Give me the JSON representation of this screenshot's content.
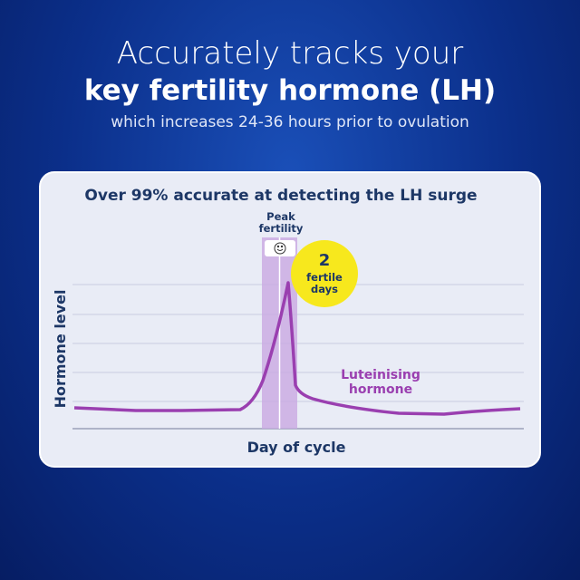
{
  "header": {
    "line1": "Accurately tracks your",
    "line2": "key fertility hormone (LH)",
    "line3": "which increases 24-36 hours prior to ovulation"
  },
  "card": {
    "title": "Over 99% accurate at detecting the LH surge",
    "y_label": "Hormone level",
    "x_label": "Day of cycle",
    "peak_label": [
      "Peak",
      "fertility"
    ],
    "badge": {
      "number": "2",
      "text": [
        "fertile",
        "days"
      ]
    },
    "curve_label": [
      "Luteinising",
      "hormone"
    ]
  }
}
